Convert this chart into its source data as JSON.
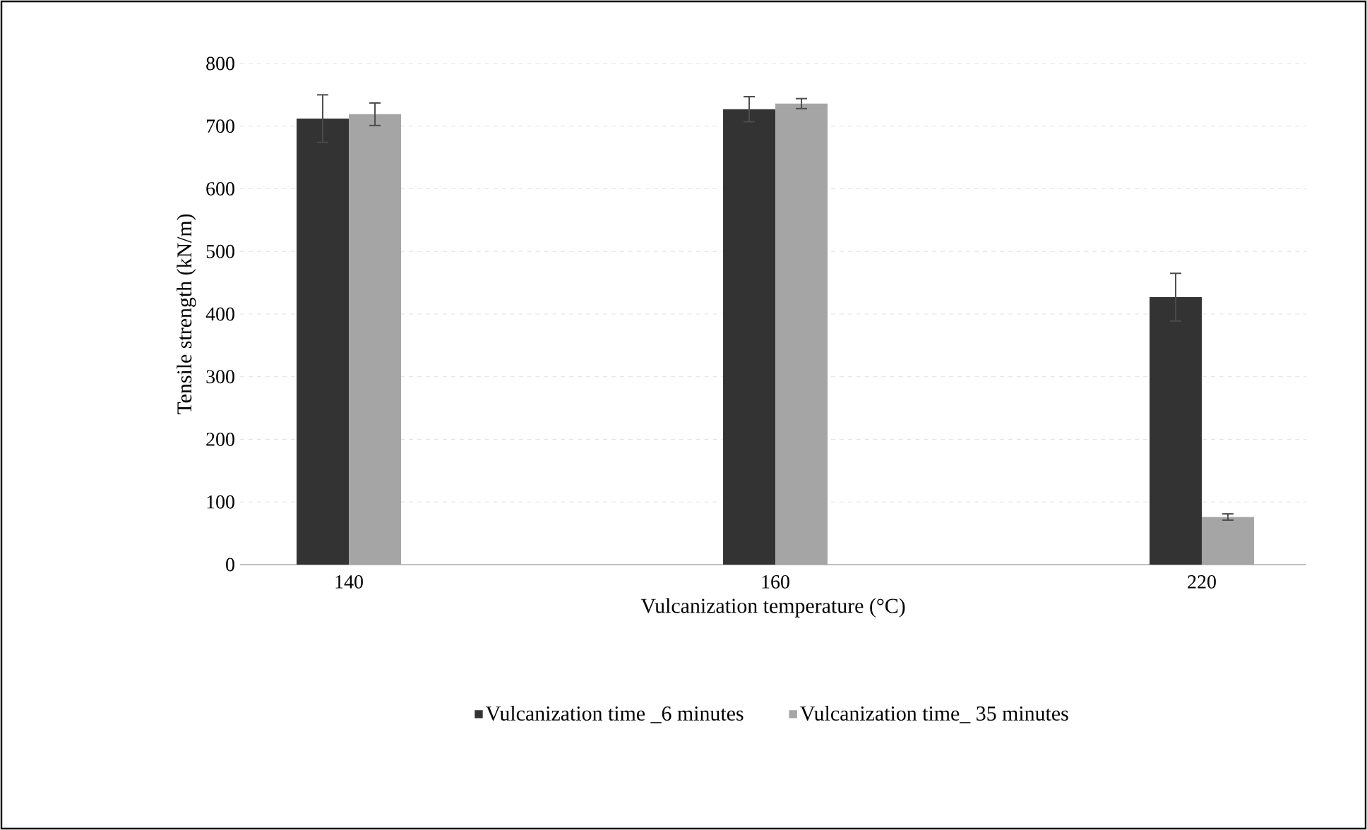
{
  "chart_data": {
    "type": "bar",
    "xlabel": "Vulcanization temperature (°C)",
    "ylabel": "Tensile strength (kN/m)",
    "categories": [
      "140",
      "160",
      "220"
    ],
    "series": [
      {
        "name": "Vulcanization time _6 minutes",
        "color": "#333333",
        "values": [
          712,
          727,
          427
        ],
        "errors": [
          38,
          20,
          38
        ]
      },
      {
        "name": "Vulcanization time_ 35 minutes",
        "color": "#a5a5a5",
        "values": [
          719,
          736,
          76
        ],
        "errors": [
          18,
          8,
          5
        ]
      }
    ],
    "ylim": [
      0,
      800
    ],
    "yticks": [
      0,
      100,
      200,
      300,
      400,
      500,
      600,
      700,
      800
    ],
    "grid": "y",
    "legend": "bottom"
  }
}
